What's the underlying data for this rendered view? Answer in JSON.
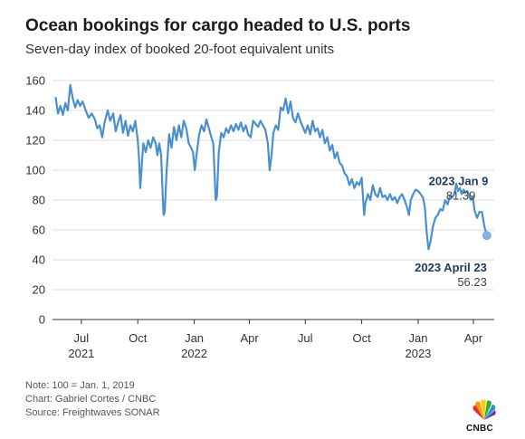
{
  "title": "Ocean bookings for cargo headed to U.S. ports",
  "subtitle": "Seven-day index of booked 20-foot equivalent units",
  "notes": {
    "note": "Note: 100 = Jan. 1, 2019",
    "credit": "Chart: Gabriel Cortes / CNBC",
    "source": "Source: Freightwaves SONAR"
  },
  "logo_text": "CNBC",
  "colors": {
    "line": "#4a90d0",
    "annotation": "#1f3a5f",
    "grid": "#dcdcdc",
    "axis": "#333333"
  },
  "chart_data": {
    "type": "line",
    "ylim": [
      0,
      160
    ],
    "yticks": [
      0,
      20,
      40,
      60,
      80,
      100,
      120,
      140,
      160
    ],
    "grid": true,
    "xlim": [
      "2021-05-15",
      "2023-05-05"
    ],
    "xticks": [
      {
        "date": "2021-07-01",
        "label": "Jul",
        "year": "2021"
      },
      {
        "date": "2021-10-01",
        "label": "Oct",
        "year": ""
      },
      {
        "date": "2022-01-01",
        "label": "Jan",
        "year": "2022"
      },
      {
        "date": "2022-04-01",
        "label": "Apr",
        "year": ""
      },
      {
        "date": "2022-07-01",
        "label": "Jul",
        "year": ""
      },
      {
        "date": "2022-10-01",
        "label": "Oct",
        "year": ""
      },
      {
        "date": "2023-01-01",
        "label": "Jan",
        "year": "2023"
      },
      {
        "date": "2023-04-01",
        "label": "Apr",
        "year": ""
      }
    ],
    "series": [
      {
        "points": [
          [
            "2021-05-20",
            149
          ],
          [
            "2021-05-24",
            138
          ],
          [
            "2021-05-28",
            143
          ],
          [
            "2021-06-01",
            137
          ],
          [
            "2021-06-05",
            145
          ],
          [
            "2021-06-09",
            140
          ],
          [
            "2021-06-13",
            157
          ],
          [
            "2021-06-17",
            148
          ],
          [
            "2021-06-21",
            142
          ],
          [
            "2021-06-25",
            147
          ],
          [
            "2021-06-29",
            143
          ],
          [
            "2021-07-03",
            146
          ],
          [
            "2021-07-08",
            140
          ],
          [
            "2021-07-13",
            135
          ],
          [
            "2021-07-18",
            138
          ],
          [
            "2021-07-23",
            134
          ],
          [
            "2021-07-27",
            128
          ],
          [
            "2021-07-31",
            130
          ],
          [
            "2021-08-04",
            122
          ],
          [
            "2021-08-08",
            132
          ],
          [
            "2021-08-13",
            140
          ],
          [
            "2021-08-17",
            133
          ],
          [
            "2021-08-22",
            138
          ],
          [
            "2021-08-26",
            126
          ],
          [
            "2021-08-30",
            132
          ],
          [
            "2021-09-03",
            137
          ],
          [
            "2021-09-07",
            125
          ],
          [
            "2021-09-11",
            133
          ],
          [
            "2021-09-15",
            123
          ],
          [
            "2021-09-19",
            130
          ],
          [
            "2021-09-23",
            126
          ],
          [
            "2021-09-27",
            133
          ],
          [
            "2021-10-01",
            120
          ],
          [
            "2021-10-03",
            108
          ],
          [
            "2021-10-05",
            88
          ],
          [
            "2021-10-07",
            100
          ],
          [
            "2021-10-10",
            118
          ],
          [
            "2021-10-14",
            112
          ],
          [
            "2021-10-18",
            120
          ],
          [
            "2021-10-22",
            115
          ],
          [
            "2021-10-26",
            122
          ],
          [
            "2021-10-30",
            118
          ],
          [
            "2021-11-02",
            110
          ],
          [
            "2021-11-05",
            118
          ],
          [
            "2021-11-08",
            110
          ],
          [
            "2021-11-10",
            90
          ],
          [
            "2021-11-12",
            70
          ],
          [
            "2021-11-14",
            72
          ],
          [
            "2021-11-17",
            100
          ],
          [
            "2021-11-21",
            124
          ],
          [
            "2021-11-25",
            115
          ],
          [
            "2021-11-29",
            129
          ],
          [
            "2021-12-03",
            120
          ],
          [
            "2021-12-07",
            130
          ],
          [
            "2021-12-11",
            122
          ],
          [
            "2021-12-15",
            133
          ],
          [
            "2021-12-19",
            128
          ],
          [
            "2021-12-23",
            118
          ],
          [
            "2021-12-27",
            115
          ],
          [
            "2021-12-30",
            112
          ],
          [
            "2022-01-02",
            100
          ],
          [
            "2022-01-05",
            111
          ],
          [
            "2022-01-09",
            124
          ],
          [
            "2022-01-13",
            130
          ],
          [
            "2022-01-17",
            126
          ],
          [
            "2022-01-21",
            134
          ],
          [
            "2022-01-25",
            128
          ],
          [
            "2022-01-29",
            122
          ],
          [
            "2022-02-01",
            118
          ],
          [
            "2022-02-03",
            100
          ],
          [
            "2022-02-05",
            80
          ],
          [
            "2022-02-07",
            82
          ],
          [
            "2022-02-10",
            112
          ],
          [
            "2022-02-14",
            125
          ],
          [
            "2022-02-18",
            122
          ],
          [
            "2022-02-22",
            128
          ],
          [
            "2022-02-26",
            125
          ],
          [
            "2022-03-02",
            130
          ],
          [
            "2022-03-06",
            126
          ],
          [
            "2022-03-10",
            131
          ],
          [
            "2022-03-14",
            127
          ],
          [
            "2022-03-18",
            132
          ],
          [
            "2022-03-22",
            126
          ],
          [
            "2022-03-26",
            130
          ],
          [
            "2022-03-30",
            124
          ],
          [
            "2022-04-03",
            122
          ],
          [
            "2022-04-07",
            133
          ],
          [
            "2022-04-11",
            131
          ],
          [
            "2022-04-15",
            129
          ],
          [
            "2022-04-19",
            133
          ],
          [
            "2022-04-23",
            130
          ],
          [
            "2022-04-27",
            127
          ],
          [
            "2022-05-01",
            118
          ],
          [
            "2022-05-04",
            100
          ],
          [
            "2022-05-07",
            110
          ],
          [
            "2022-05-10",
            125
          ],
          [
            "2022-05-14",
            130
          ],
          [
            "2022-05-18",
            127
          ],
          [
            "2022-05-22",
            142
          ],
          [
            "2022-05-26",
            140
          ],
          [
            "2022-05-30",
            148
          ],
          [
            "2022-06-03",
            138
          ],
          [
            "2022-06-07",
            146
          ],
          [
            "2022-06-11",
            135
          ],
          [
            "2022-06-15",
            132
          ],
          [
            "2022-06-19",
            138
          ],
          [
            "2022-06-23",
            133
          ],
          [
            "2022-06-27",
            129
          ],
          [
            "2022-07-01",
            125
          ],
          [
            "2022-07-05",
            130
          ],
          [
            "2022-07-09",
            124
          ],
          [
            "2022-07-13",
            133
          ],
          [
            "2022-07-17",
            126
          ],
          [
            "2022-07-21",
            128
          ],
          [
            "2022-07-25",
            122
          ],
          [
            "2022-07-29",
            127
          ],
          [
            "2022-08-02",
            118
          ],
          [
            "2022-08-06",
            122
          ],
          [
            "2022-08-10",
            113
          ],
          [
            "2022-08-14",
            117
          ],
          [
            "2022-08-18",
            108
          ],
          [
            "2022-08-22",
            112
          ],
          [
            "2022-08-26",
            105
          ],
          [
            "2022-08-30",
            103
          ],
          [
            "2022-09-03",
            98
          ],
          [
            "2022-09-07",
            96
          ],
          [
            "2022-09-11",
            90
          ],
          [
            "2022-09-15",
            94
          ],
          [
            "2022-09-19",
            88
          ],
          [
            "2022-09-23",
            92
          ],
          [
            "2022-09-27",
            90
          ],
          [
            "2022-10-01",
            95
          ],
          [
            "2022-10-03",
            82
          ],
          [
            "2022-10-05",
            70
          ],
          [
            "2022-10-07",
            78
          ],
          [
            "2022-10-11",
            84
          ],
          [
            "2022-10-15",
            80
          ],
          [
            "2022-10-19",
            90
          ],
          [
            "2022-10-23",
            84
          ],
          [
            "2022-10-27",
            82
          ],
          [
            "2022-10-31",
            88
          ],
          [
            "2022-11-04",
            82
          ],
          [
            "2022-11-08",
            83
          ],
          [
            "2022-11-12",
            80
          ],
          [
            "2022-11-16",
            84
          ],
          [
            "2022-11-20",
            80
          ],
          [
            "2022-11-24",
            82
          ],
          [
            "2022-11-28",
            78
          ],
          [
            "2022-12-02",
            82
          ],
          [
            "2022-12-06",
            84
          ],
          [
            "2022-12-10",
            80
          ],
          [
            "2022-12-14",
            75
          ],
          [
            "2022-12-17",
            70
          ],
          [
            "2022-12-20",
            80
          ],
          [
            "2022-12-24",
            84
          ],
          [
            "2022-12-28",
            87
          ],
          [
            "2023-01-01",
            86
          ],
          [
            "2023-01-05",
            84
          ],
          [
            "2023-01-09",
            81.39
          ],
          [
            "2023-01-12",
            75
          ],
          [
            "2023-01-15",
            58
          ],
          [
            "2023-01-18",
            47
          ],
          [
            "2023-01-21",
            52
          ],
          [
            "2023-01-25",
            62
          ],
          [
            "2023-01-29",
            68
          ],
          [
            "2023-02-02",
            70
          ],
          [
            "2023-02-06",
            74
          ],
          [
            "2023-02-10",
            73
          ],
          [
            "2023-02-14",
            80
          ],
          [
            "2023-02-18",
            77
          ],
          [
            "2023-02-22",
            83
          ],
          [
            "2023-02-26",
            82
          ],
          [
            "2023-03-01",
            84
          ],
          [
            "2023-03-04",
            91
          ],
          [
            "2023-03-07",
            86
          ],
          [
            "2023-03-10",
            88
          ],
          [
            "2023-03-13",
            84
          ],
          [
            "2023-03-16",
            87
          ],
          [
            "2023-03-19",
            85
          ],
          [
            "2023-03-22",
            86
          ],
          [
            "2023-03-25",
            83
          ],
          [
            "2023-03-28",
            80
          ],
          [
            "2023-03-31",
            82
          ],
          [
            "2023-04-03",
            73
          ],
          [
            "2023-04-07",
            68
          ],
          [
            "2023-04-11",
            72
          ],
          [
            "2023-04-15",
            72
          ],
          [
            "2023-04-19",
            62
          ],
          [
            "2023-04-23",
            56.23
          ]
        ]
      }
    ],
    "annotations": [
      {
        "date": "2023-01-09",
        "title": "2023 Jan 9",
        "value_label": "81.39",
        "value": 81.39
      },
      {
        "date": "2023-04-23",
        "title": "2023 April 23",
        "value_label": "56.23",
        "value": 56.23
      }
    ]
  }
}
